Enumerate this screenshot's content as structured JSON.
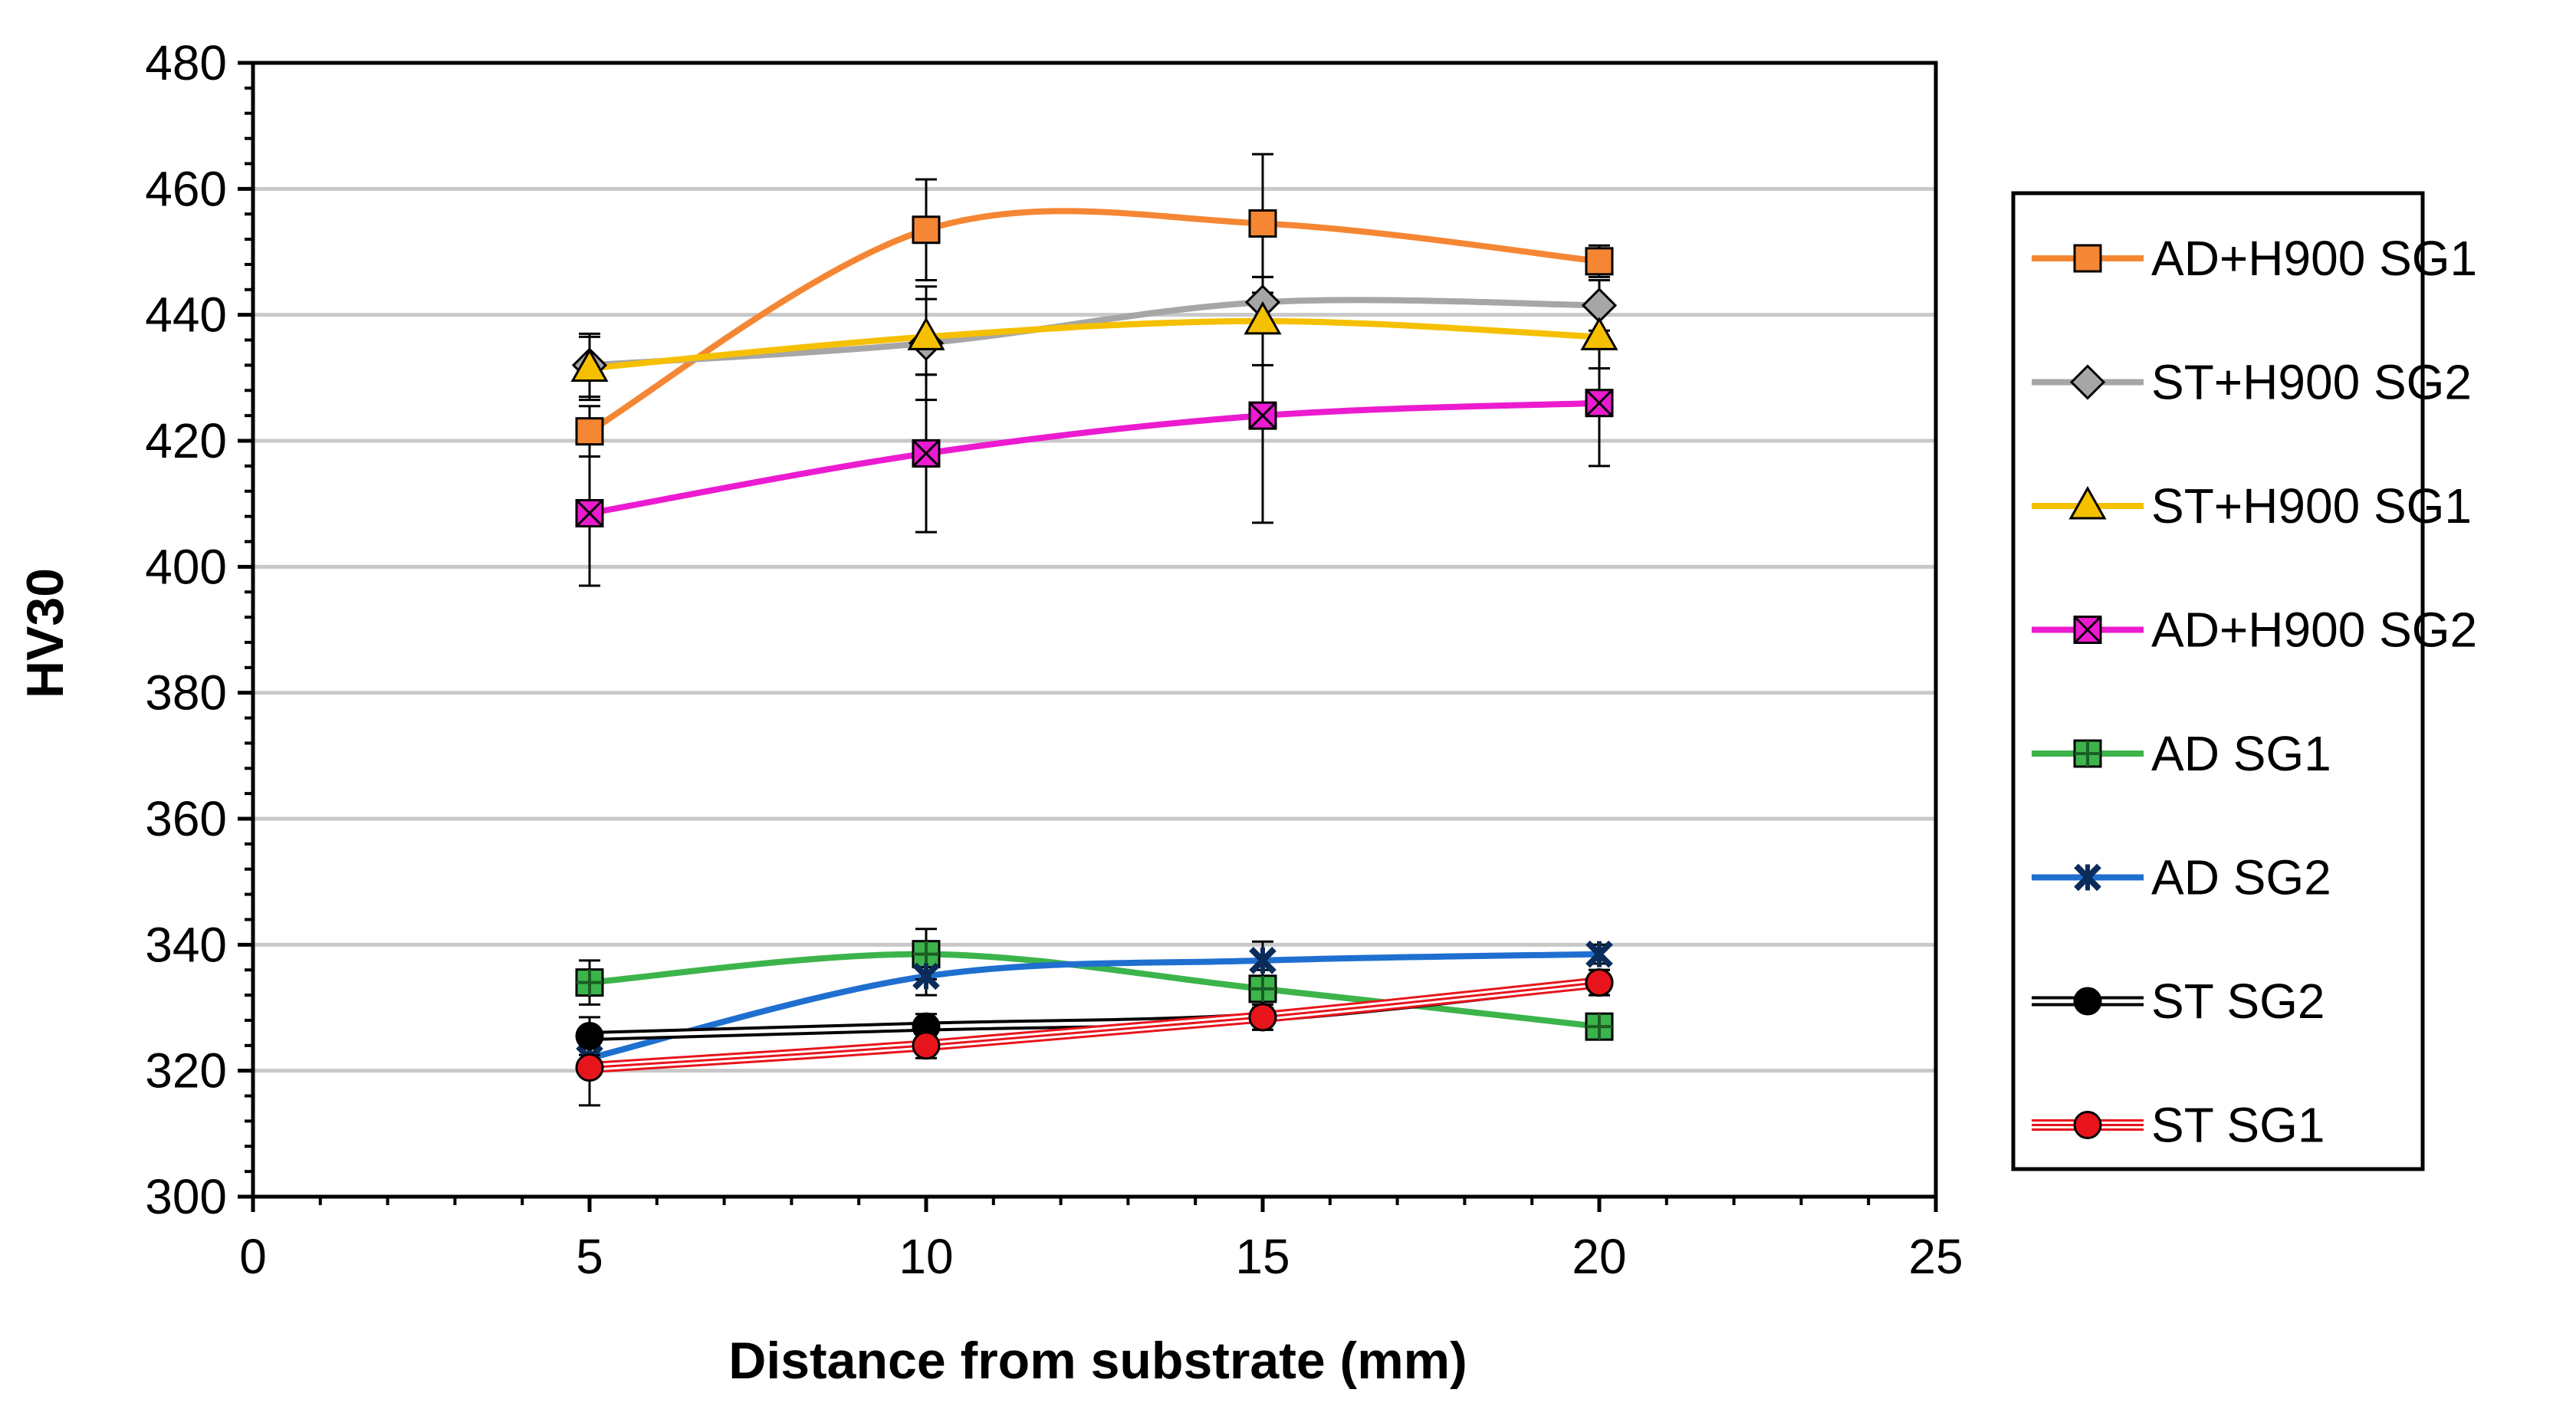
{
  "chart_data": {
    "type": "line",
    "title": "",
    "xlabel": "Distance from substrate (mm)",
    "ylabel": "HV30",
    "xlim": [
      0,
      25
    ],
    "ylim": [
      300,
      480
    ],
    "xticks": [
      0,
      5,
      10,
      15,
      20,
      25
    ],
    "yticks": [
      300,
      320,
      340,
      360,
      380,
      400,
      420,
      440,
      460,
      480
    ],
    "grid": "horizontal",
    "legend_position": "right",
    "x": [
      5,
      10,
      15,
      20
    ],
    "series": [
      {
        "name": "AD+H900 SG1",
        "color": "#F58634",
        "marker": "square",
        "markerFill": "#F58634",
        "style": "solid",
        "values": [
          421.5,
          453.5,
          454.5,
          448.5
        ],
        "errors": [
          4,
          8,
          11,
          2.5
        ]
      },
      {
        "name": "ST+H900 SG2",
        "color": "#A6A6A6",
        "marker": "diamond",
        "markerFill": "#A6A6A6",
        "style": "solid",
        "values": [
          432,
          435.5,
          442,
          441.5
        ],
        "errors": [
          5,
          9,
          4,
          4
        ]
      },
      {
        "name": "ST+H900 SG1",
        "color": "#F5C000",
        "marker": "triangle",
        "markerFill": "#F5C000",
        "style": "solid",
        "values": [
          431.5,
          436.5,
          439,
          436.5
        ],
        "errors": [
          5,
          6,
          7,
          5
        ]
      },
      {
        "name": "AD+H900 SG2",
        "color": "#EC1BD0",
        "marker": "xsquare",
        "markerFill": "#EC1BD0",
        "style": "solid",
        "values": [
          408.5,
          418,
          424,
          426
        ],
        "errors": [
          11.5,
          12.5,
          17,
          10
        ]
      },
      {
        "name": "AD SG1",
        "color": "#3CB44B",
        "marker": "plus",
        "markerFill": "#3CB44B",
        "style": "solid",
        "values": [
          334,
          338.5,
          333,
          327
        ],
        "errors": [
          3.5,
          4,
          3,
          2
        ]
      },
      {
        "name": "AD SG2",
        "color": "#1F6FD0",
        "marker": "star",
        "markerFill": "#1F4E8C",
        "style": "solid",
        "values": [
          322,
          335,
          337.5,
          338.5
        ],
        "errors": [
          2,
          3,
          3,
          1.5
        ]
      },
      {
        "name": "ST SG2",
        "color": "#000000",
        "marker": "circle",
        "markerFill": "#000000",
        "style": "double",
        "values": [
          325.5,
          327,
          328.5,
          334
        ],
        "errors": [
          3,
          2,
          2,
          2
        ]
      },
      {
        "name": "ST SG1",
        "color": "#E8141C",
        "marker": "circle",
        "markerFill": "#E8141C",
        "style": "triple",
        "values": [
          320.5,
          324,
          328.5,
          334
        ],
        "errors": [
          6,
          2,
          2,
          2
        ]
      }
    ]
  }
}
